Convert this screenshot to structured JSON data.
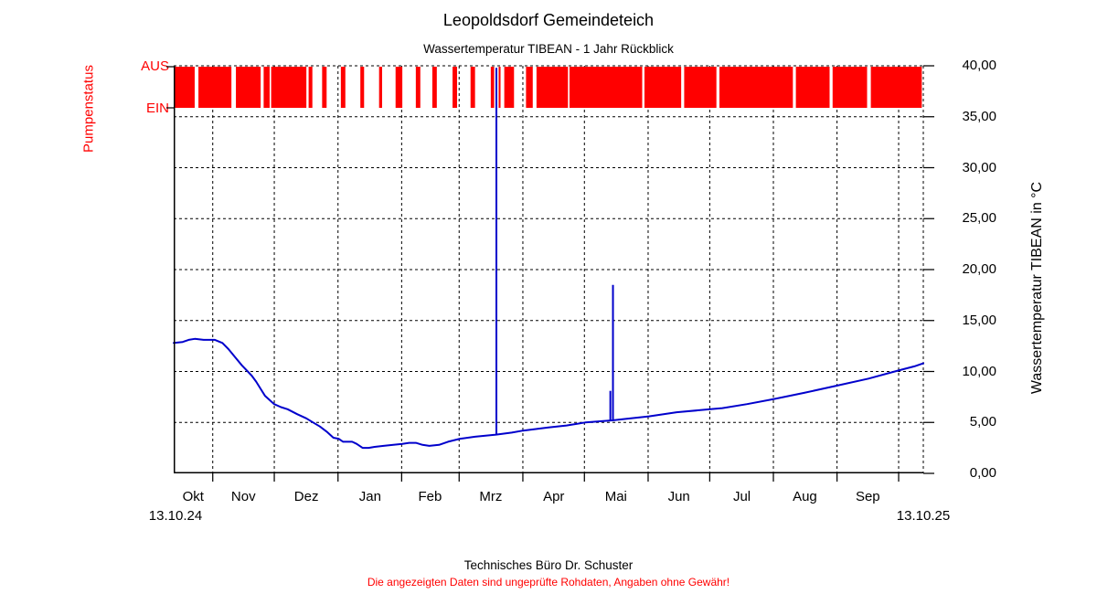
{
  "colors": {
    "background": "#ffffff",
    "pump_red": "#ff0000",
    "temperature_blue": "#0000cc",
    "axis_black": "#000000"
  },
  "footer": {
    "line1": "Technisches Büro Dr. Schuster",
    "line2": "Die angezeigten Daten sind ungeprüfte Rohdaten, Angaben ohne Gewähr!"
  },
  "chart_data": {
    "type": "line",
    "title": "Leopoldsdorf Gemeindeteich",
    "subtitle": "Wassertemperatur TIBEAN - 1 Jahr Rückblick",
    "ylabel_left": "Pumpenstatus",
    "ylabel_right": "Wassertemperatur TIBEAN in °C",
    "ylim": [
      0,
      40
    ],
    "ytick_step": 5,
    "ytick_labels": [
      "40,00",
      "35,00",
      "30,00",
      "25,00",
      "20,00",
      "15,00",
      "10,00",
      "5,00",
      "0,00"
    ],
    "grid": "dashed",
    "x_start_label": "13.10.24",
    "x_end_label": "13.10.25",
    "month_ticks_pct": [
      5.21,
      13.42,
      21.92,
      30.41,
      38.08,
      46.58,
      54.79,
      63.29,
      71.51,
      80.0,
      88.49,
      96.71
    ],
    "month_labels": [
      {
        "label": "Okt",
        "pct": 2.6
      },
      {
        "label": "Nov",
        "pct": 9.3
      },
      {
        "label": "Dez",
        "pct": 17.7
      },
      {
        "label": "Jan",
        "pct": 26.2
      },
      {
        "label": "Feb",
        "pct": 34.2
      },
      {
        "label": "Mrz",
        "pct": 42.3
      },
      {
        "label": "Apr",
        "pct": 50.7
      },
      {
        "label": "Mai",
        "pct": 59.0
      },
      {
        "label": "Jun",
        "pct": 67.4
      },
      {
        "label": "Jul",
        "pct": 75.8
      },
      {
        "label": "Aug",
        "pct": 84.2
      },
      {
        "label": "Sep",
        "pct": 92.6
      }
    ],
    "series": [
      {
        "name": "Wassertemperatur TIBEAN",
        "color": "#0000cc",
        "unit": "°C",
        "points_pct_degC": [
          [
            0,
            12.8
          ],
          [
            1.2,
            12.9
          ],
          [
            2.0,
            13.1
          ],
          [
            2.8,
            13.2
          ],
          [
            4.0,
            13.1
          ],
          [
            5.5,
            13.1
          ],
          [
            6.5,
            12.8
          ],
          [
            7.3,
            12.2
          ],
          [
            8.2,
            11.4
          ],
          [
            9.1,
            10.6
          ],
          [
            10.4,
            9.6
          ],
          [
            11.0,
            9.0
          ],
          [
            11.6,
            8.3
          ],
          [
            12.2,
            7.6
          ],
          [
            13.4,
            6.8
          ],
          [
            14.3,
            6.5
          ],
          [
            15.2,
            6.3
          ],
          [
            16.5,
            5.8
          ],
          [
            17.7,
            5.4
          ],
          [
            18.6,
            5.0
          ],
          [
            19.5,
            4.6
          ],
          [
            20.4,
            4.1
          ],
          [
            21.3,
            3.5
          ],
          [
            22.0,
            3.4
          ],
          [
            22.6,
            3.1
          ],
          [
            23.8,
            3.1
          ],
          [
            24.4,
            2.9
          ],
          [
            25.2,
            2.5
          ],
          [
            26.0,
            2.5
          ],
          [
            26.8,
            2.6
          ],
          [
            28.0,
            2.7
          ],
          [
            29.3,
            2.8
          ],
          [
            30.5,
            2.9
          ],
          [
            31.4,
            3.0
          ],
          [
            32.3,
            3.0
          ],
          [
            33.2,
            2.8
          ],
          [
            34.1,
            2.7
          ],
          [
            35.4,
            2.8
          ],
          [
            36.6,
            3.1
          ],
          [
            38.2,
            3.4
          ],
          [
            40.2,
            3.6
          ],
          [
            43.0,
            3.8
          ],
          [
            45.1,
            4.0
          ],
          [
            46.6,
            4.2
          ],
          [
            50.0,
            4.5
          ],
          [
            52.4,
            4.7
          ],
          [
            54.9,
            5.0
          ],
          [
            58.5,
            5.2
          ],
          [
            61.0,
            5.4
          ],
          [
            63.4,
            5.6
          ],
          [
            67.1,
            6.0
          ],
          [
            71.6,
            6.3
          ],
          [
            73.2,
            6.4
          ],
          [
            76.5,
            6.8
          ],
          [
            80.1,
            7.3
          ],
          [
            84.1,
            7.9
          ],
          [
            88.4,
            8.6
          ],
          [
            92.7,
            9.3
          ],
          [
            96.7,
            10.1
          ],
          [
            98.8,
            10.5
          ],
          [
            100,
            10.8
          ]
        ],
        "spikes_pct_from_to_degC": [
          [
            43.05,
            3.8,
            39.8
          ],
          [
            58.25,
            5.2,
            8.1
          ],
          [
            58.6,
            5.2,
            18.5
          ]
        ]
      }
    ],
    "pump_band": {
      "high_label": "AUS",
      "low_label": "EIN",
      "color": "#ff0000",
      "segments_pct": [
        [
          0.1,
          2.8
        ],
        [
          3.3,
          7.7
        ],
        [
          8.3,
          11.6
        ],
        [
          12.0,
          12.8
        ],
        [
          13.0,
          17.7
        ],
        [
          18.0,
          18.5
        ],
        [
          19.8,
          20.4
        ],
        [
          22.3,
          22.9
        ],
        [
          24.9,
          25.4
        ],
        [
          27.4,
          27.8
        ],
        [
          29.6,
          30.5
        ],
        [
          32.3,
          32.9
        ],
        [
          34.5,
          35.1
        ],
        [
          37.2,
          37.8
        ],
        [
          39.6,
          40.2
        ],
        [
          42.3,
          42.75
        ],
        [
          43.35,
          43.6
        ],
        [
          44.1,
          45.4
        ],
        [
          47.0,
          47.9
        ],
        [
          48.4,
          52.6
        ],
        [
          52.8,
          62.5
        ],
        [
          62.8,
          67.7
        ],
        [
          68.1,
          72.4
        ],
        [
          72.8,
          82.6
        ],
        [
          83.0,
          87.5
        ],
        [
          87.9,
          92.5
        ],
        [
          93.0,
          99.8
        ]
      ]
    }
  }
}
